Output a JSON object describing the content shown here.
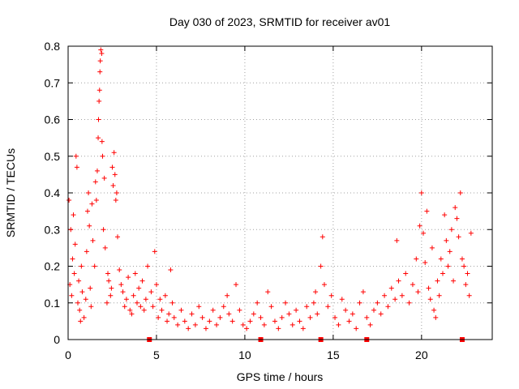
{
  "chart_data": {
    "type": "scatter",
    "title": "Day 030 of 2023, SRMTID for receiver av01",
    "xlabel": "GPS time / hours",
    "ylabel": "SRMTID / TECUs",
    "xlim": [
      0,
      24
    ],
    "ylim": [
      0,
      0.8
    ],
    "xticks": [
      0,
      5,
      10,
      15,
      20
    ],
    "yticks": [
      0,
      0.1,
      0.2,
      0.3,
      0.4,
      0.5,
      0.6,
      0.7,
      0.8
    ],
    "xtick_labels": [
      "0",
      "5",
      "10",
      "15",
      "20"
    ],
    "ytick_labels": [
      "0",
      "0.1",
      "0.2",
      "0.3",
      "0.4",
      "0.5",
      "0.6",
      "0.7",
      "0.8"
    ],
    "grid": true,
    "marker": "+",
    "color": "#ff0000",
    "zero_value_hours": [
      4.6,
      10.9,
      14.3,
      16.9,
      22.3
    ],
    "series": [
      {
        "name": "SRMTID",
        "points": [
          [
            0.05,
            0.38
          ],
          [
            0.1,
            0.15
          ],
          [
            0.15,
            0.3
          ],
          [
            0.2,
            0.12
          ],
          [
            0.25,
            0.22
          ],
          [
            0.3,
            0.34
          ],
          [
            0.35,
            0.18
          ],
          [
            0.4,
            0.26
          ],
          [
            0.45,
            0.5
          ],
          [
            0.5,
            0.47
          ],
          [
            0.55,
            0.1
          ],
          [
            0.6,
            0.16
          ],
          [
            0.65,
            0.08
          ],
          [
            0.7,
            0.05
          ],
          [
            0.75,
            0.2
          ],
          [
            0.8,
            0.13
          ],
          [
            0.9,
            0.06
          ],
          [
            1.0,
            0.11
          ],
          [
            1.05,
            0.24
          ],
          [
            1.1,
            0.35
          ],
          [
            1.15,
            0.4
          ],
          [
            1.2,
            0.31
          ],
          [
            1.25,
            0.14
          ],
          [
            1.3,
            0.09
          ],
          [
            1.35,
            0.37
          ],
          [
            1.4,
            0.27
          ],
          [
            1.5,
            0.2
          ],
          [
            1.55,
            0.43
          ],
          [
            1.6,
            0.38
          ],
          [
            1.65,
            0.46
          ],
          [
            1.7,
            0.55
          ],
          [
            1.72,
            0.6
          ],
          [
            1.75,
            0.65
          ],
          [
            1.78,
            0.68
          ],
          [
            1.8,
            0.73
          ],
          [
            1.82,
            0.76
          ],
          [
            1.85,
            0.79
          ],
          [
            1.9,
            0.78
          ],
          [
            1.92,
            0.54
          ],
          [
            1.95,
            0.5
          ],
          [
            2.0,
            0.3
          ],
          [
            2.05,
            0.44
          ],
          [
            2.1,
            0.25
          ],
          [
            2.2,
            0.1
          ],
          [
            2.25,
            0.18
          ],
          [
            2.3,
            0.16
          ],
          [
            2.4,
            0.12
          ],
          [
            2.45,
            0.14
          ],
          [
            2.5,
            0.47
          ],
          [
            2.55,
            0.42
          ],
          [
            2.6,
            0.51
          ],
          [
            2.65,
            0.45
          ],
          [
            2.7,
            0.38
          ],
          [
            2.75,
            0.4
          ],
          [
            2.8,
            0.28
          ],
          [
            2.9,
            0.19
          ],
          [
            3.0,
            0.15
          ],
          [
            3.1,
            0.13
          ],
          [
            3.2,
            0.09
          ],
          [
            3.3,
            0.11
          ],
          [
            3.4,
            0.17
          ],
          [
            3.5,
            0.08
          ],
          [
            3.6,
            0.07
          ],
          [
            3.7,
            0.12
          ],
          [
            3.8,
            0.18
          ],
          [
            3.9,
            0.1
          ],
          [
            4.0,
            0.14
          ],
          [
            4.1,
            0.09
          ],
          [
            4.2,
            0.16
          ],
          [
            4.3,
            0.08
          ],
          [
            4.4,
            0.11
          ],
          [
            4.5,
            0.2
          ],
          [
            4.7,
            0.13
          ],
          [
            4.8,
            0.09
          ],
          [
            4.9,
            0.24
          ],
          [
            5.0,
            0.15
          ],
          [
            5.1,
            0.06
          ],
          [
            5.2,
            0.11
          ],
          [
            5.3,
            0.08
          ],
          [
            5.5,
            0.12
          ],
          [
            5.6,
            0.05
          ],
          [
            5.7,
            0.07
          ],
          [
            5.8,
            0.19
          ],
          [
            5.9,
            0.1
          ],
          [
            6.0,
            0.06
          ],
          [
            6.2,
            0.04
          ],
          [
            6.4,
            0.08
          ],
          [
            6.6,
            0.05
          ],
          [
            6.8,
            0.03
          ],
          [
            7.0,
            0.07
          ],
          [
            7.2,
            0.04
          ],
          [
            7.4,
            0.09
          ],
          [
            7.6,
            0.06
          ],
          [
            7.8,
            0.03
          ],
          [
            8.0,
            0.05
          ],
          [
            8.2,
            0.08
          ],
          [
            8.4,
            0.04
          ],
          [
            8.6,
            0.06
          ],
          [
            8.8,
            0.09
          ],
          [
            9.0,
            0.12
          ],
          [
            9.1,
            0.07
          ],
          [
            9.3,
            0.05
          ],
          [
            9.5,
            0.15
          ],
          [
            9.7,
            0.08
          ],
          [
            9.9,
            0.04
          ],
          [
            10.1,
            0.03
          ],
          [
            10.3,
            0.05
          ],
          [
            10.5,
            0.07
          ],
          [
            10.7,
            0.1
          ],
          [
            10.9,
            0.06
          ],
          [
            11.1,
            0.04
          ],
          [
            11.3,
            0.13
          ],
          [
            11.5,
            0.09
          ],
          [
            11.7,
            0.05
          ],
          [
            11.9,
            0.03
          ],
          [
            12.1,
            0.06
          ],
          [
            12.3,
            0.1
          ],
          [
            12.5,
            0.07
          ],
          [
            12.7,
            0.04
          ],
          [
            12.9,
            0.08
          ],
          [
            13.1,
            0.05
          ],
          [
            13.3,
            0.03
          ],
          [
            13.5,
            0.09
          ],
          [
            13.7,
            0.06
          ],
          [
            13.9,
            0.1
          ],
          [
            14.0,
            0.13
          ],
          [
            14.1,
            0.07
          ],
          [
            14.3,
            0.2
          ],
          [
            14.4,
            0.28
          ],
          [
            14.5,
            0.15
          ],
          [
            14.7,
            0.09
          ],
          [
            14.9,
            0.12
          ],
          [
            15.1,
            0.06
          ],
          [
            15.3,
            0.04
          ],
          [
            15.5,
            0.11
          ],
          [
            15.7,
            0.08
          ],
          [
            15.9,
            0.05
          ],
          [
            16.1,
            0.07
          ],
          [
            16.3,
            0.03
          ],
          [
            16.5,
            0.1
          ],
          [
            16.7,
            0.13
          ],
          [
            16.9,
            0.06
          ],
          [
            17.1,
            0.04
          ],
          [
            17.3,
            0.08
          ],
          [
            17.5,
            0.1
          ],
          [
            17.7,
            0.07
          ],
          [
            17.9,
            0.12
          ],
          [
            18.1,
            0.09
          ],
          [
            18.3,
            0.14
          ],
          [
            18.5,
            0.11
          ],
          [
            18.6,
            0.27
          ],
          [
            18.7,
            0.16
          ],
          [
            18.9,
            0.12
          ],
          [
            19.1,
            0.18
          ],
          [
            19.3,
            0.1
          ],
          [
            19.5,
            0.15
          ],
          [
            19.7,
            0.22
          ],
          [
            19.8,
            0.13
          ],
          [
            19.9,
            0.31
          ],
          [
            20.0,
            0.4
          ],
          [
            20.1,
            0.29
          ],
          [
            20.2,
            0.21
          ],
          [
            20.3,
            0.35
          ],
          [
            20.4,
            0.14
          ],
          [
            20.5,
            0.11
          ],
          [
            20.6,
            0.25
          ],
          [
            20.7,
            0.08
          ],
          [
            20.8,
            0.06
          ],
          [
            20.9,
            0.16
          ],
          [
            21.0,
            0.12
          ],
          [
            21.1,
            0.22
          ],
          [
            21.2,
            0.18
          ],
          [
            21.3,
            0.34
          ],
          [
            21.4,
            0.27
          ],
          [
            21.5,
            0.2
          ],
          [
            21.6,
            0.24
          ],
          [
            21.7,
            0.3
          ],
          [
            21.8,
            0.16
          ],
          [
            21.9,
            0.36
          ],
          [
            22.0,
            0.33
          ],
          [
            22.1,
            0.28
          ],
          [
            22.2,
            0.4
          ],
          [
            22.3,
            0.22
          ],
          [
            22.4,
            0.2
          ],
          [
            22.5,
            0.15
          ],
          [
            22.6,
            0.18
          ],
          [
            22.7,
            0.12
          ],
          [
            22.8,
            0.29
          ]
        ]
      }
    ]
  }
}
